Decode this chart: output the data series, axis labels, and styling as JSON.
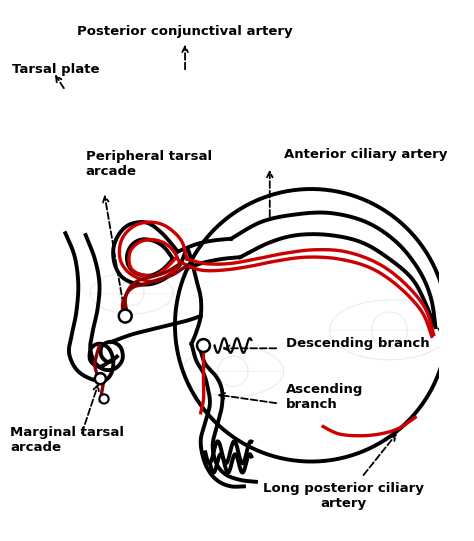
{
  "bg_color": "#ffffff",
  "black": "#000000",
  "red": "#cc0000",
  "dark_red": "#8b0000",
  "gray": "#b0b0b0",
  "labels": {
    "posterior_conjunctival_artery": "Posterior conjunctival artery",
    "tarsal_plate": "Tarsal plate",
    "peripheral_tarsal_arcade": "Peripheral tarsal\narcade",
    "anterior_ciliary_artery": "Anterior ciliary artery",
    "descending_branch": "Descending branch",
    "ascending_branch": "Ascending\nbranch",
    "marginal_tarsal_arcade": "Marginal tarsal\narcade",
    "long_posterior_ciliary_artery": "Long posterior ciliary\nartery"
  },
  "figsize": [
    4.74,
    5.41
  ],
  "dpi": 100
}
